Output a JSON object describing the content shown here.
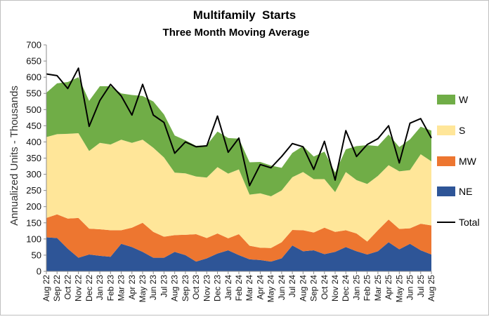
{
  "chart_data": {
    "type": "area",
    "title": "Multifamily  Starts",
    "subtitle": "Three Month Moving Average",
    "ylabel": "Annualized Units - Thousands",
    "xlabel": "",
    "ylim": [
      0,
      700
    ],
    "ytick_step": 50,
    "grid": false,
    "stacked": true,
    "legend_position": "right",
    "categories": [
      "Aug 22",
      "Sep 22",
      "Oct 22",
      "Nov 22",
      "Dec 22",
      "Jan 23",
      "Feb 23",
      "Mar 23",
      "Apr 23",
      "May 23",
      "Jun 23",
      "Jul 23",
      "Aug 23",
      "Sep 23",
      "Oct 23",
      "Nov 23",
      "Dec 23",
      "Jan 24",
      "Feb 24",
      "Mar 24",
      "Apr 24",
      "May 24",
      "Jun 24",
      "Jul 24",
      "Aug 24",
      "Sep 24",
      "Oct 24",
      "Nov 24",
      "Dec 24",
      "Jan 25",
      "Feb 25",
      "Mar 25",
      "Apr 25",
      "May 25",
      "Jun 25",
      "Jul 25",
      "Aug 25"
    ],
    "x_label_step": 1,
    "series": [
      {
        "name": "NE",
        "color": "#2E5597",
        "values": [
          105,
          103,
          70,
          42,
          52,
          48,
          45,
          85,
          75,
          60,
          42,
          42,
          60,
          50,
          30,
          40,
          55,
          65,
          50,
          37,
          35,
          30,
          40,
          80,
          62,
          65,
          53,
          60,
          75,
          62,
          52,
          62,
          90,
          68,
          85,
          65,
          52
        ]
      },
      {
        "name": "MW",
        "color": "#ED7630",
        "values": [
          60,
          73,
          93,
          123,
          80,
          82,
          82,
          42,
          60,
          90,
          80,
          65,
          52,
          63,
          85,
          63,
          62,
          37,
          65,
          42,
          38,
          42,
          50,
          48,
          65,
          55,
          82,
          62,
          52,
          55,
          40,
          65,
          70,
          63,
          48,
          82,
          90
        ]
      },
      {
        "name": "S",
        "color": "#FFE699",
        "values": [
          250,
          248,
          262,
          262,
          240,
          267,
          265,
          280,
          262,
          257,
          260,
          245,
          193,
          190,
          178,
          187,
          205,
          200,
          200,
          158,
          168,
          160,
          160,
          163,
          180,
          165,
          150,
          123,
          180,
          165,
          178,
          168,
          168,
          178,
          180,
          215,
          198
        ]
      },
      {
        "name": "W",
        "color": "#70AD47",
        "values": [
          137,
          157,
          160,
          173,
          155,
          175,
          180,
          143,
          148,
          135,
          143,
          133,
          115,
          102,
          95,
          100,
          110,
          110,
          95,
          100,
          97,
          95,
          70,
          75,
          80,
          70,
          85,
          60,
          70,
          105,
          120,
          92,
          95,
          75,
          95,
          85,
          95
        ]
      }
    ],
    "total": {
      "name": "Total",
      "color": "#000000",
      "values": [
        610,
        605,
        565,
        628,
        448,
        528,
        578,
        542,
        483,
        578,
        483,
        460,
        365,
        400,
        385,
        388,
        480,
        368,
        412,
        265,
        330,
        320,
        355,
        395,
        385,
        315,
        402,
        282,
        435,
        355,
        392,
        410,
        450,
        335,
        458,
        472,
        412
      ]
    }
  }
}
